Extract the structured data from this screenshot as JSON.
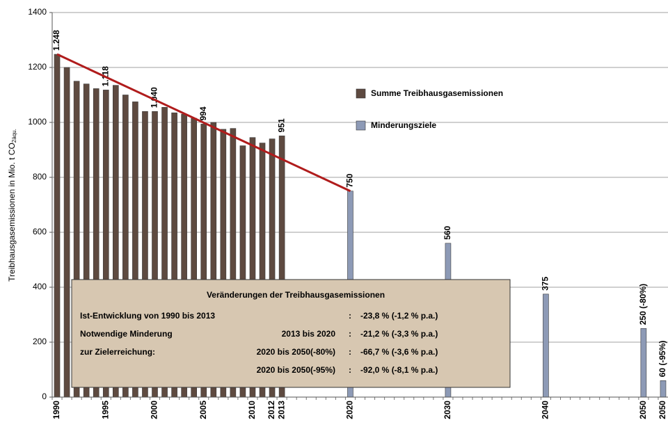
{
  "chart_data": {
    "type": "bar",
    "ylabel": "Treibhausgasemissionen in Mio. t CO",
    "ylabel_sub": "2äqu.",
    "ylim": [
      0,
      1400
    ],
    "yticks": [
      0,
      200,
      400,
      600,
      800,
      1000,
      1200,
      1400
    ],
    "grid": true,
    "legend_position": "upper right",
    "categories": [
      "1990",
      null,
      null,
      null,
      null,
      "1995",
      null,
      null,
      null,
      null,
      "2000",
      null,
      null,
      null,
      null,
      "2005",
      null,
      null,
      null,
      null,
      "2010",
      null,
      "2012",
      "2013",
      null,
      null,
      null,
      null,
      null,
      null,
      "2020",
      null,
      null,
      null,
      null,
      null,
      null,
      null,
      null,
      null,
      "2030",
      null,
      null,
      null,
      null,
      null,
      null,
      null,
      null,
      null,
      "2040",
      null,
      null,
      null,
      null,
      null,
      null,
      null,
      null,
      null,
      "2050",
      null,
      "2050"
    ],
    "series": [
      {
        "name": "Summe Treibhausgasemissionen",
        "color": "#5e4a40",
        "values": [
          1248,
          1200,
          1150,
          1140,
          1123,
          1118,
          1135,
          1100,
          1075,
          1040,
          1040,
          1055,
          1035,
          1030,
          1015,
          994,
          1000,
          975,
          978,
          915,
          945,
          925,
          940,
          951,
          null,
          null,
          null,
          null,
          null,
          null,
          null,
          null,
          null,
          null,
          null,
          null,
          null,
          null,
          null,
          null,
          null,
          null,
          null,
          null,
          null,
          null,
          null,
          null,
          null,
          null,
          null,
          null,
          null,
          null,
          null,
          null,
          null,
          null,
          null,
          null,
          null,
          null,
          null
        ],
        "value_labels": [
          "1.248",
          null,
          null,
          null,
          null,
          "1.118",
          null,
          null,
          null,
          null,
          "1.040",
          null,
          null,
          null,
          null,
          "994",
          null,
          null,
          null,
          null,
          null,
          null,
          null,
          "951",
          null,
          null,
          null,
          null,
          null,
          null,
          null,
          null,
          null,
          null,
          null,
          null,
          null,
          null,
          null,
          null,
          null,
          null,
          null,
          null,
          null,
          null,
          null,
          null,
          null,
          null,
          null,
          null,
          null,
          null,
          null,
          null,
          null,
          null,
          null,
          null,
          null,
          null,
          null
        ]
      },
      {
        "name": "Minderungsziele",
        "color": "#8d9ab6",
        "values": [
          null,
          null,
          null,
          null,
          null,
          null,
          null,
          null,
          null,
          null,
          null,
          null,
          null,
          null,
          null,
          null,
          null,
          null,
          null,
          null,
          null,
          null,
          null,
          null,
          null,
          null,
          null,
          null,
          null,
          null,
          750,
          null,
          null,
          null,
          null,
          null,
          null,
          null,
          null,
          null,
          560,
          null,
          null,
          null,
          null,
          null,
          null,
          null,
          null,
          null,
          375,
          null,
          null,
          null,
          null,
          null,
          null,
          null,
          null,
          null,
          250,
          null,
          60
        ],
        "value_labels": [
          null,
          null,
          null,
          null,
          null,
          null,
          null,
          null,
          null,
          null,
          null,
          null,
          null,
          null,
          null,
          null,
          null,
          null,
          null,
          null,
          null,
          null,
          null,
          null,
          null,
          null,
          null,
          null,
          null,
          null,
          "750",
          null,
          null,
          null,
          null,
          null,
          null,
          null,
          null,
          null,
          "560",
          null,
          null,
          null,
          null,
          null,
          null,
          null,
          null,
          null,
          "375",
          null,
          null,
          null,
          null,
          null,
          null,
          null,
          null,
          null,
          "250 (-80%)",
          null,
          "60 (-95%)"
        ]
      }
    ],
    "trend_line": {
      "color": "#b01c1c",
      "x": [
        "1990",
        "2020"
      ],
      "values": [
        1248,
        750
      ]
    },
    "annotation": {
      "title": "Veränderungen der Treibhausgasemissionen",
      "separator": ":",
      "rows": [
        {
          "label": "Ist-Entwicklung von 1990 bis 2013",
          "value": "-23,8 % (-1,2 % p.a.)"
        },
        {
          "label": "Notwendige Minderung",
          "period": "2013 bis 2020",
          "value": "-21,2 % (-3,3 % p.a.)"
        },
        {
          "label": "zur Zielerreichung:",
          "period": "2020 bis 2050(-80%)",
          "value": "-66,7 % (-3,6 % p.a.)"
        },
        {
          "period": "2020 bis 2050(-95%)",
          "value": "-92,0 % (-8,1 % p.a.)"
        }
      ]
    }
  }
}
